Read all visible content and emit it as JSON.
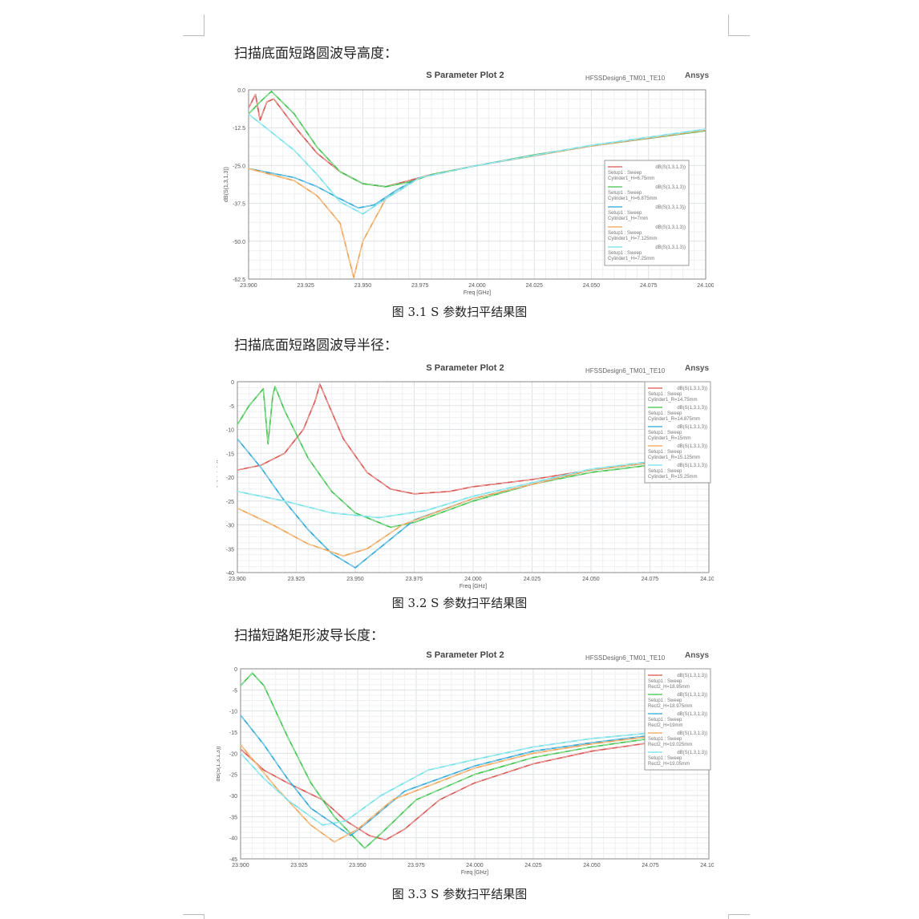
{
  "sections": [
    {
      "heading": "扫描底面短路圆波导高度：",
      "caption": "图 3.1 S 参数扫平结果图"
    },
    {
      "heading": "扫描底面短路圆波导半径：",
      "caption": "图 3.2 S 参数扫平结果图"
    },
    {
      "heading": "扫描短路矩形波导长度：",
      "caption": "图 3.3 S 参数扫平结果图"
    }
  ],
  "chart_data": [
    {
      "type": "line",
      "title": "S Parameter Plot 2",
      "design": "HFSSDesign6_TM01_TE10",
      "logo": "Ansys",
      "xlabel": "Freq [GHz]",
      "ylabel": "dB(S(1,3,1,3))",
      "xlim": [
        23.9,
        24.1
      ],
      "ylim": [
        -62.5,
        0
      ],
      "xticks": [
        "23.900",
        "23.925",
        "23.950",
        "23.975",
        "24.000",
        "24.025",
        "24.050",
        "24.075",
        "24.100"
      ],
      "yticks": [
        "0.0",
        "-12.5",
        "-25.0",
        "-37.5",
        "-50.0",
        "-62.5"
      ],
      "grid": true,
      "legend": "right",
      "series": [
        {
          "name": "dB(S(1,3,1,3))",
          "setup": "Setup1 : Sweep",
          "param": "Cylinder1_H=6.75mm",
          "color": "#d9534f",
          "points": [
            [
              23.9,
              -6
            ],
            [
              23.903,
              -1.5
            ],
            [
              23.905,
              -10
            ],
            [
              23.908,
              -4
            ],
            [
              23.911,
              -3
            ],
            [
              23.92,
              -12
            ],
            [
              23.93,
              -21
            ],
            [
              23.94,
              -27
            ],
            [
              23.95,
              -31
            ],
            [
              23.96,
              -32
            ],
            [
              23.97,
              -30
            ],
            [
              23.98,
              -28
            ],
            [
              24.0,
              -25
            ],
            [
              24.025,
              -21.5
            ],
            [
              24.05,
              -18.5
            ],
            [
              24.075,
              -16
            ],
            [
              24.1,
              -13.5
            ]
          ]
        },
        {
          "name": "dB(S(1,3,1,3))",
          "setup": "Setup1 : Sweep",
          "param": "Cylinder1_H=6.875mm",
          "color": "#3cc34a",
          "points": [
            [
              23.9,
              -8
            ],
            [
              23.905,
              -4
            ],
            [
              23.91,
              -0.5
            ],
            [
              23.92,
              -8
            ],
            [
              23.93,
              -19
            ],
            [
              23.94,
              -27
            ],
            [
              23.95,
              -31
            ],
            [
              23.96,
              -32
            ],
            [
              23.97,
              -30.5
            ],
            [
              23.98,
              -28
            ],
            [
              24.0,
              -25
            ],
            [
              24.025,
              -21.5
            ],
            [
              24.05,
              -18.5
            ],
            [
              24.075,
              -16
            ],
            [
              24.1,
              -13.5
            ]
          ]
        },
        {
          "name": "dB(S(1,3,1,3))",
          "setup": "Setup1 : Sweep",
          "param": "Cylinder1_H=7mm",
          "color": "#2aa7d8",
          "points": [
            [
              23.9,
              -26
            ],
            [
              23.92,
              -29
            ],
            [
              23.93,
              -32
            ],
            [
              23.94,
              -36
            ],
            [
              23.948,
              -39
            ],
            [
              23.955,
              -38
            ],
            [
              23.965,
              -33
            ],
            [
              23.975,
              -29
            ],
            [
              24.0,
              -25
            ],
            [
              24.05,
              -18.5
            ],
            [
              24.1,
              -13.3
            ]
          ]
        },
        {
          "name": "dB(S(1,3,1,3))",
          "setup": "Setup1 : Sweep",
          "param": "Cylinder1_H=7.125mm",
          "color": "#f0a050",
          "points": [
            [
              23.9,
              -26
            ],
            [
              23.92,
              -30
            ],
            [
              23.93,
              -35
            ],
            [
              23.94,
              -44
            ],
            [
              23.946,
              -62
            ],
            [
              23.95,
              -50
            ],
            [
              23.96,
              -36
            ],
            [
              23.975,
              -29
            ],
            [
              24.0,
              -25
            ],
            [
              24.05,
              -18.5
            ],
            [
              24.1,
              -13.3
            ]
          ]
        },
        {
          "name": "dB(S(1,3,1,3))",
          "setup": "Setup1 : Sweep",
          "param": "Cylinder1_H=7.25mm",
          "color": "#6fe0e8",
          "points": [
            [
              23.9,
              -8
            ],
            [
              23.91,
              -14
            ],
            [
              23.92,
              -20
            ],
            [
              23.93,
              -28
            ],
            [
              23.94,
              -37
            ],
            [
              23.95,
              -41
            ],
            [
              23.96,
              -36
            ],
            [
              23.975,
              -29
            ],
            [
              24.0,
              -25
            ],
            [
              24.05,
              -18.3
            ],
            [
              24.1,
              -13
            ]
          ]
        }
      ]
    },
    {
      "type": "line",
      "title": "S Parameter Plot 2",
      "design": "HFSSDesign6_TM01_TE10",
      "logo": "Ansys",
      "xlabel": "Freq [GHz]",
      "ylabel": "dB(S(1,3,1,3))",
      "xlim": [
        23.9,
        24.1
      ],
      "ylim": [
        -40,
        0
      ],
      "xticks": [
        "23.900",
        "23.925",
        "23.950",
        "23.975",
        "24.000",
        "24.025",
        "24.050",
        "24.075",
        "24.100"
      ],
      "yticks": [
        "0",
        "-5",
        "-10",
        "-15",
        "-20",
        "-25",
        "-30",
        "-35",
        "-40"
      ],
      "grid": true,
      "legend": "top-right",
      "series": [
        {
          "name": "dB(S(1,3,1,3))",
          "setup": "Setup1 : Sweep",
          "param": "Cylinder1_R=14.75mm",
          "color": "#d9534f",
          "points": [
            [
              23.9,
              -18.5
            ],
            [
              23.91,
              -17.5
            ],
            [
              23.92,
              -15
            ],
            [
              23.928,
              -10
            ],
            [
              23.933,
              -4
            ],
            [
              23.935,
              -0.5
            ],
            [
              23.938,
              -4
            ],
            [
              23.945,
              -12
            ],
            [
              23.955,
              -19
            ],
            [
              23.965,
              -22.5
            ],
            [
              23.975,
              -23.5
            ],
            [
              23.99,
              -23
            ],
            [
              24.0,
              -22
            ],
            [
              24.025,
              -20.5
            ],
            [
              24.05,
              -18.5
            ],
            [
              24.075,
              -17
            ],
            [
              24.1,
              -15.5
            ]
          ]
        },
        {
          "name": "dB(S(1,3,1,3))",
          "setup": "Setup1 : Sweep",
          "param": "Cylinder1_R=14.875mm",
          "color": "#3cc34a",
          "points": [
            [
              23.9,
              -9
            ],
            [
              23.905,
              -5
            ],
            [
              23.911,
              -1.5
            ],
            [
              23.913,
              -13
            ],
            [
              23.915,
              -3
            ],
            [
              23.916,
              -1
            ],
            [
              23.92,
              -6
            ],
            [
              23.93,
              -16
            ],
            [
              23.94,
              -23
            ],
            [
              23.95,
              -27.5
            ],
            [
              23.965,
              -30.5
            ],
            [
              23.975,
              -29.5
            ],
            [
              24.0,
              -25
            ],
            [
              24.025,
              -21.5
            ],
            [
              24.05,
              -19
            ],
            [
              24.075,
              -17.5
            ],
            [
              24.1,
              -16
            ]
          ]
        },
        {
          "name": "dB(S(1,3,1,3))",
          "setup": "Setup1 : Sweep",
          "param": "Cylinder1_R=15mm",
          "color": "#2aa7d8",
          "points": [
            [
              23.9,
              -12
            ],
            [
              23.91,
              -18
            ],
            [
              23.92,
              -25
            ],
            [
              23.93,
              -31
            ],
            [
              23.94,
              -36
            ],
            [
              23.95,
              -39
            ],
            [
              23.96,
              -35
            ],
            [
              23.975,
              -29
            ],
            [
              24.0,
              -24.5
            ],
            [
              24.05,
              -18.5
            ],
            [
              24.1,
              -15.5
            ]
          ]
        },
        {
          "name": "dB(S(1,3,1,3))",
          "setup": "Setup1 : Sweep",
          "param": "Cylinder1_R=15.125mm",
          "color": "#f0a050",
          "points": [
            [
              23.9,
              -26.5
            ],
            [
              23.915,
              -30
            ],
            [
              23.93,
              -34
            ],
            [
              23.945,
              -36.5
            ],
            [
              23.955,
              -35
            ],
            [
              23.97,
              -30
            ],
            [
              24.0,
              -24.5
            ],
            [
              24.05,
              -18.5
            ],
            [
              24.1,
              -15.5
            ]
          ]
        },
        {
          "name": "dB(S(1,3,1,3))",
          "setup": "Setup1 : Sweep",
          "param": "Cylinder1_R=15.25mm",
          "color": "#6fe0e8",
          "points": [
            [
              23.9,
              -23
            ],
            [
              23.92,
              -25
            ],
            [
              23.94,
              -27.5
            ],
            [
              23.96,
              -28.5
            ],
            [
              23.98,
              -27
            ],
            [
              24.0,
              -24
            ],
            [
              24.05,
              -18.3
            ],
            [
              24.1,
              -15.2
            ]
          ]
        }
      ]
    },
    {
      "type": "line",
      "title": "S Parameter Plot 2",
      "design": "HFSSDesign6_TM01_TE10",
      "logo": "Ansys",
      "xlabel": "Freq [GHz]",
      "ylabel": "dB(S(1,3,1,3))",
      "xlim": [
        23.9,
        24.1
      ],
      "ylim": [
        -45,
        0
      ],
      "xticks": [
        "23.900",
        "23.925",
        "23.950",
        "23.975",
        "24.000",
        "24.025",
        "24.050",
        "24.075",
        "24.100"
      ],
      "yticks": [
        "0",
        "-5",
        "-10",
        "-15",
        "-20",
        "-25",
        "-30",
        "-35",
        "-40",
        "-45"
      ],
      "grid": true,
      "legend": "top-right",
      "series": [
        {
          "name": "dB(S(1,3,1,3))",
          "setup": "Setup1 : Sweep",
          "param": "Rect2_H=18.95mm",
          "color": "#d9534f",
          "points": [
            [
              23.9,
              -19
            ],
            [
              23.91,
              -24
            ],
            [
              23.92,
              -27
            ],
            [
              23.935,
              -31
            ],
            [
              23.945,
              -36
            ],
            [
              23.955,
              -39.5
            ],
            [
              23.962,
              -40.5
            ],
            [
              23.97,
              -38
            ],
            [
              23.985,
              -31
            ],
            [
              24.0,
              -27
            ],
            [
              24.025,
              -22.5
            ],
            [
              24.05,
              -19.5
            ],
            [
              24.075,
              -17.5
            ],
            [
              24.1,
              -16
            ]
          ]
        },
        {
          "name": "dB(S(1,3,1,3))",
          "setup": "Setup1 : Sweep",
          "param": "Rect2_H=18.975mm",
          "color": "#3cc34a",
          "points": [
            [
              23.9,
              -4
            ],
            [
              23.905,
              -1
            ],
            [
              23.91,
              -4
            ],
            [
              23.92,
              -16
            ],
            [
              23.93,
              -27
            ],
            [
              23.94,
              -35
            ],
            [
              23.953,
              -42.5
            ],
            [
              23.96,
              -39
            ],
            [
              23.975,
              -31
            ],
            [
              24.0,
              -25
            ],
            [
              24.025,
              -21
            ],
            [
              24.05,
              -18.5
            ],
            [
              24.075,
              -16.5
            ],
            [
              24.1,
              -15.5
            ]
          ]
        },
        {
          "name": "dB(S(1,3,1,3))",
          "setup": "Setup1 : Sweep",
          "param": "Rect2_H=19mm",
          "color": "#2aa7d8",
          "points": [
            [
              23.9,
              -11
            ],
            [
              23.91,
              -18
            ],
            [
              23.92,
              -26
            ],
            [
              23.93,
              -33
            ],
            [
              23.947,
              -39.5
            ],
            [
              23.955,
              -36
            ],
            [
              23.97,
              -29
            ],
            [
              24.0,
              -23
            ],
            [
              24.025,
              -19.5
            ],
            [
              24.05,
              -17.5
            ],
            [
              24.075,
              -15.8
            ],
            [
              24.1,
              -15
            ]
          ]
        },
        {
          "name": "dB(S(1,3,1,3))",
          "setup": "Setup1 : Sweep",
          "param": "Rect2_H=19.025mm",
          "color": "#f0a050",
          "points": [
            [
              23.9,
              -18
            ],
            [
              23.915,
              -28
            ],
            [
              23.93,
              -37
            ],
            [
              23.94,
              -41
            ],
            [
              23.95,
              -38
            ],
            [
              23.965,
              -31
            ],
            [
              24.0,
              -23.5
            ],
            [
              24.025,
              -20
            ],
            [
              24.05,
              -17.8
            ],
            [
              24.075,
              -16
            ],
            [
              24.1,
              -15
            ]
          ]
        },
        {
          "name": "dB(S(1,3,1,3))",
          "setup": "Setup1 : Sweep",
          "param": "Rect2_H=19.05mm",
          "color": "#6fe0e8",
          "points": [
            [
              23.9,
              -20
            ],
            [
              23.91,
              -26
            ],
            [
              23.92,
              -31
            ],
            [
              23.935,
              -37
            ],
            [
              23.945,
              -36
            ],
            [
              23.96,
              -30
            ],
            [
              23.98,
              -24
            ],
            [
              24.0,
              -21.5
            ],
            [
              24.025,
              -18.5
            ],
            [
              24.05,
              -16.5
            ],
            [
              24.075,
              -15.2
            ],
            [
              24.1,
              -14.5
            ]
          ]
        }
      ]
    }
  ]
}
